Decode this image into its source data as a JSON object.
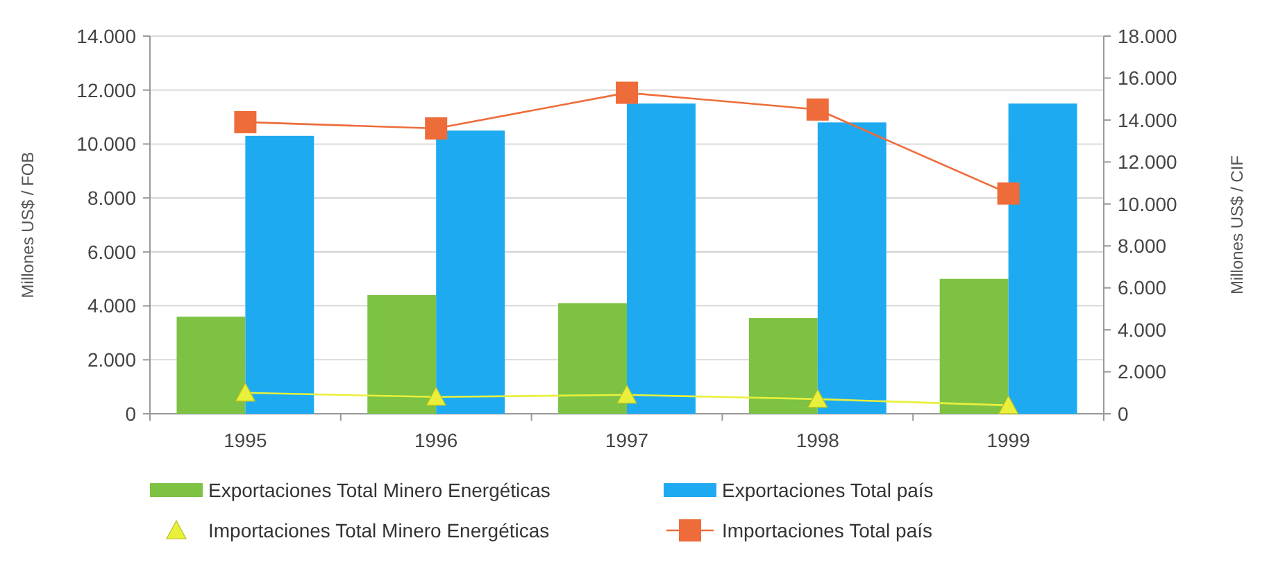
{
  "chart_data": {
    "type": "bar",
    "ylabel": "Millones US$ / FOB",
    "y2label": "Millones US$ / CIF",
    "categories": [
      "1995",
      "1996",
      "1997",
      "1998",
      "1999"
    ],
    "series": [
      {
        "name": "Exportaciones Total Minero Energéticas",
        "color": "#7dc242",
        "values": [
          3600,
          4400,
          4100,
          3550,
          5000
        ]
      },
      {
        "name": "Exportaciones Total país",
        "color": "#1eaaf1",
        "values": [
          10300,
          10500,
          11500,
          10800,
          11500
        ]
      },
      {
        "name": "Importaciones Total Minero Energéticas",
        "type": "line",
        "axis": "y2",
        "marker": "triangle",
        "color": "#e8f03c",
        "values": [
          1000,
          800,
          900,
          700,
          400
        ]
      },
      {
        "name": "Importaciones Total país",
        "type": "line",
        "axis": "y2",
        "marker": "square",
        "color": "#ee6c3a",
        "values": [
          13900,
          13600,
          15300,
          14500,
          10500
        ]
      }
    ],
    "ylim": [
      0,
      14000
    ],
    "yticks": [
      {
        "value": 0,
        "label": "0"
      },
      {
        "value": 2000,
        "label": "2.000"
      },
      {
        "value": 4000,
        "label": "4.000"
      },
      {
        "value": 6000,
        "label": "6.000"
      },
      {
        "value": 8000,
        "label": "8.000"
      },
      {
        "value": 10000,
        "label": "10.000"
      },
      {
        "value": 12000,
        "label": "12.000"
      },
      {
        "value": 14000,
        "label": "14.000"
      }
    ],
    "y2lim": [
      0,
      18000
    ],
    "y2ticks": [
      {
        "value": 0,
        "label": "0"
      },
      {
        "value": 2000,
        "label": "2.000"
      },
      {
        "value": 4000,
        "label": "4.000"
      },
      {
        "value": 6000,
        "label": "6.000"
      },
      {
        "value": 8000,
        "label": "8.000"
      },
      {
        "value": 10000,
        "label": "10.000"
      },
      {
        "value": 12000,
        "label": "12.000"
      },
      {
        "value": 14000,
        "label": "14.000"
      },
      {
        "value": 16000,
        "label": "16.000"
      },
      {
        "value": 18000,
        "label": "18.000"
      }
    ],
    "grid": "y",
    "legend": "bottom"
  }
}
